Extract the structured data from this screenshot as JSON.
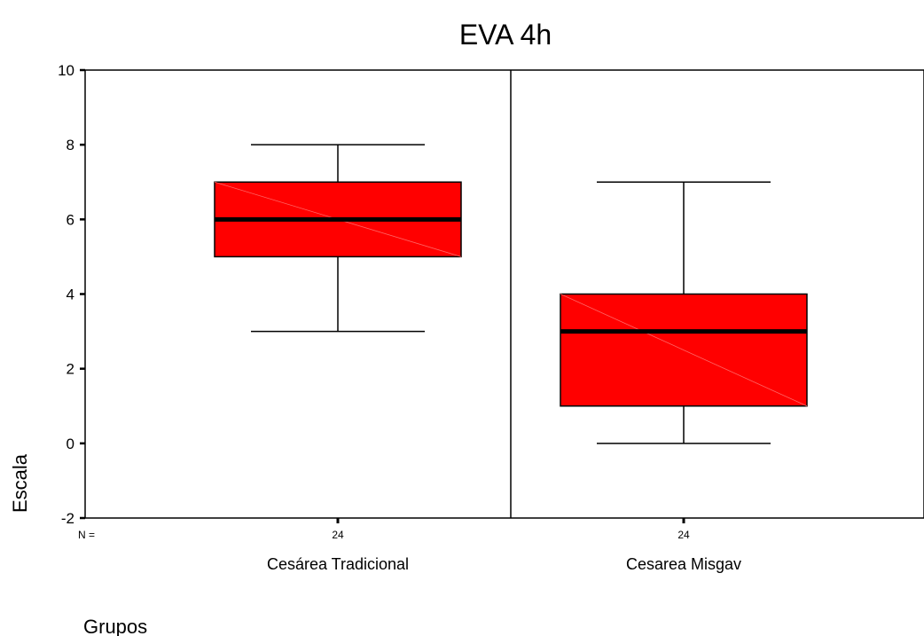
{
  "chart_data": {
    "type": "boxplot",
    "title": "EVA 4h",
    "xlabel": "Grupos",
    "ylabel": "Escala",
    "ylim": [
      -2,
      10
    ],
    "yticks": [
      "-2",
      "0",
      "2",
      "4",
      "6",
      "8",
      "10"
    ],
    "n_label": "N =",
    "grid": false,
    "box_color": "#ff0000",
    "categories": [
      "Cesárea Tradicional",
      "Cesarea Misgav"
    ],
    "n_values": [
      "24",
      "24"
    ],
    "boxes": [
      {
        "category": "Cesárea Tradicional",
        "min": 3,
        "q1": 5,
        "median": 6,
        "q3": 7,
        "max": 8
      },
      {
        "category": "Cesarea Misgav",
        "min": 0,
        "q1": 1,
        "median": 3,
        "q3": 4,
        "max": 7
      }
    ]
  }
}
